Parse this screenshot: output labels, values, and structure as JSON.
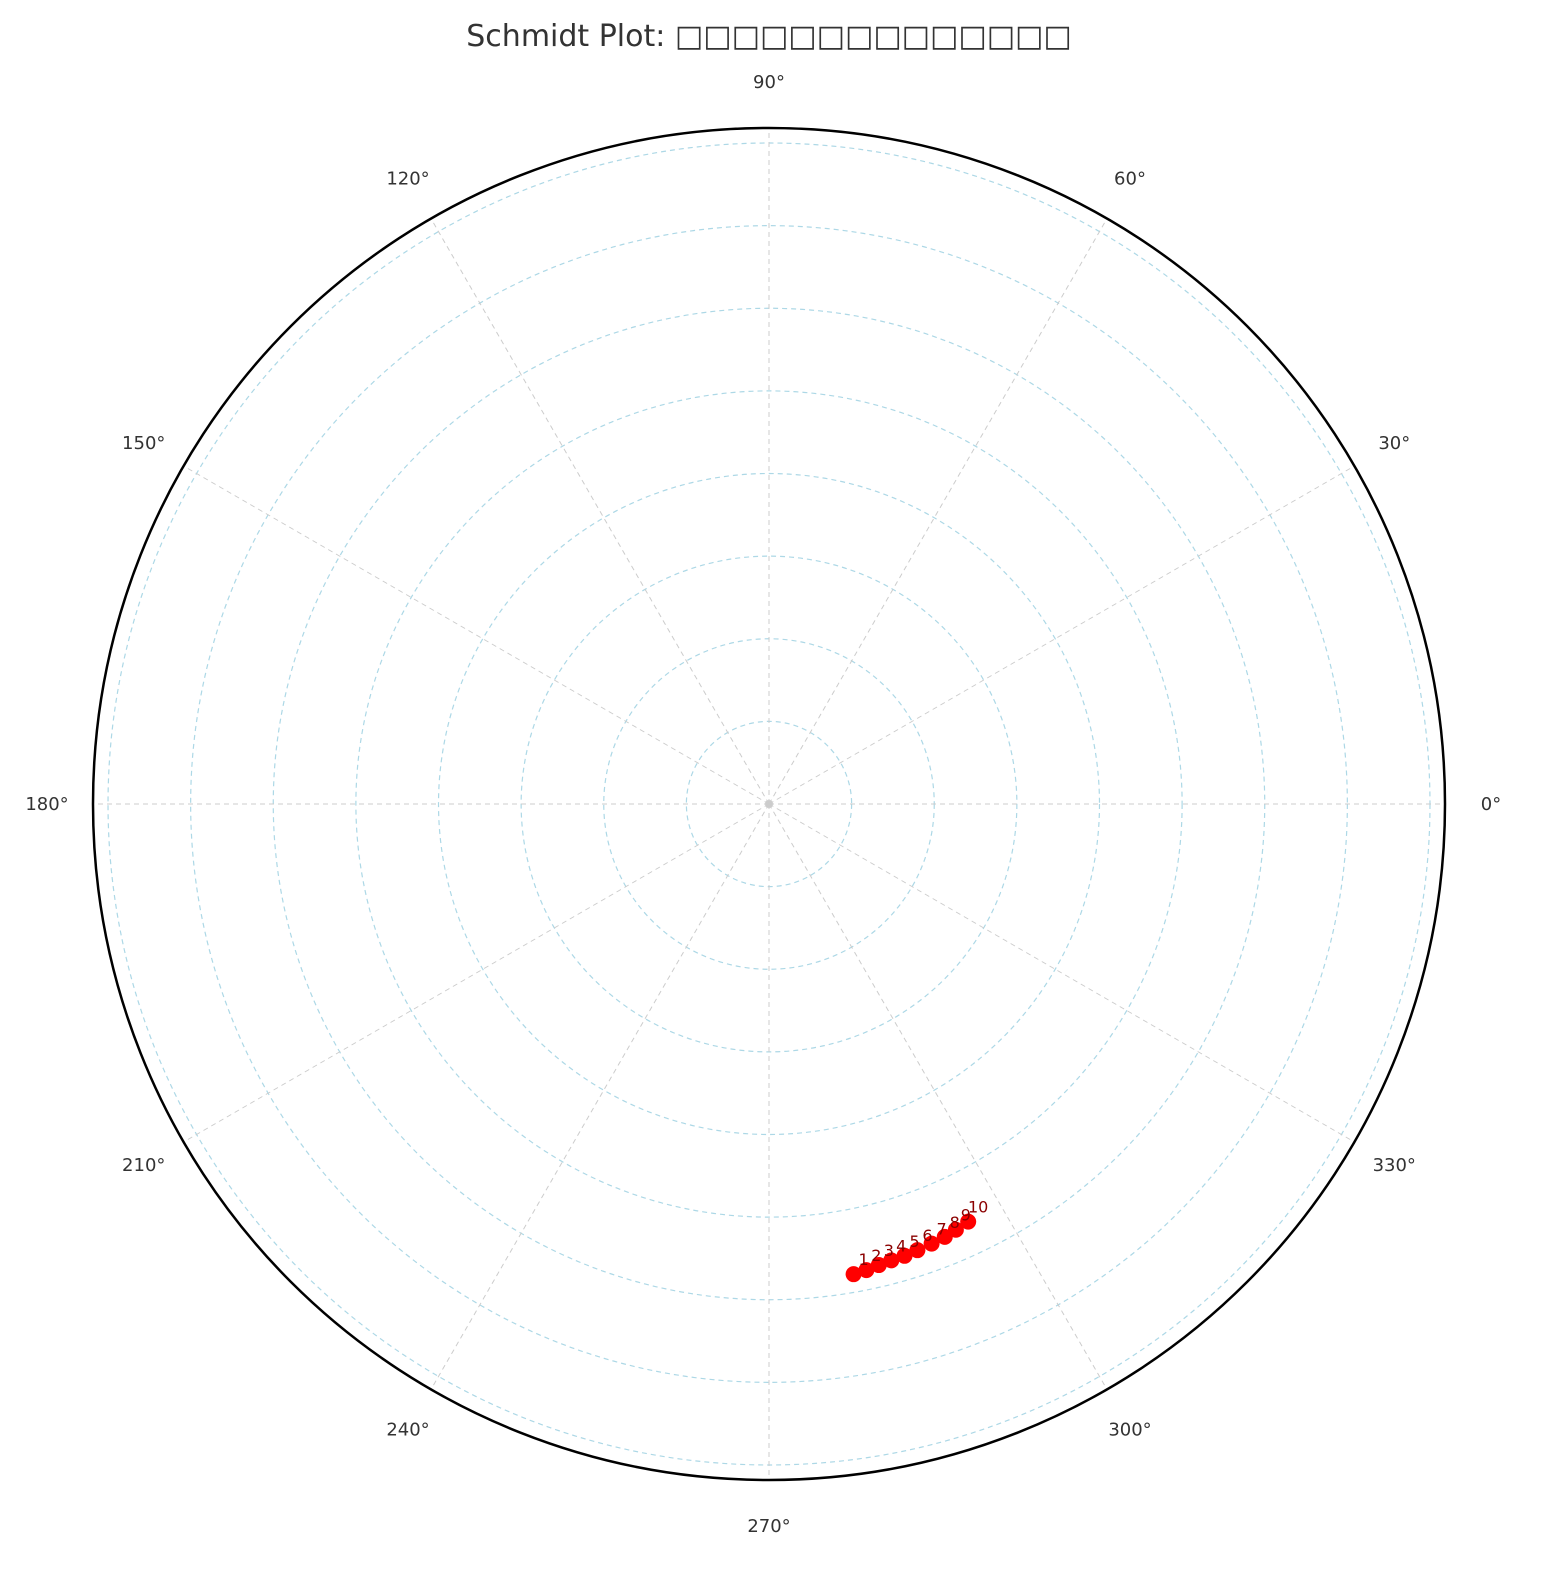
{
  "chart_data": {
    "type": "scatter",
    "projection": "polar",
    "title": "Schmidt Plot: □□□□□□□□□□□□□□",
    "angle_ticks": [
      {
        "deg": 0,
        "label": "0°"
      },
      {
        "deg": 30,
        "label": "30°"
      },
      {
        "deg": 60,
        "label": "60°"
      },
      {
        "deg": 90,
        "label": "90°"
      },
      {
        "deg": 120,
        "label": "120°"
      },
      {
        "deg": 150,
        "label": "150°"
      },
      {
        "deg": 180,
        "label": "180°"
      },
      {
        "deg": 210,
        "label": "210°"
      },
      {
        "deg": 240,
        "label": "240°"
      },
      {
        "deg": 270,
        "label": "270°"
      },
      {
        "deg": 300,
        "label": "300°"
      },
      {
        "deg": 330,
        "label": "330°"
      }
    ],
    "radial_range": [
      0,
      90
    ],
    "radial_gridlines": [
      11,
      22,
      33,
      44,
      55,
      66,
      77,
      88
    ],
    "grid": true,
    "points": [
      {
        "label": "1",
        "theta": 280.2,
        "r": 63.6
      },
      {
        "label": "2",
        "theta": 281.8,
        "r": 63.4
      },
      {
        "label": "3",
        "theta": 283.4,
        "r": 63.1
      },
      {
        "label": "4",
        "theta": 285.0,
        "r": 62.9
      },
      {
        "label": "5",
        "theta": 286.7,
        "r": 62.8
      },
      {
        "label": "6",
        "theta": 288.4,
        "r": 62.6
      },
      {
        "label": "7",
        "theta": 290.3,
        "r": 62.4
      },
      {
        "label": "8",
        "theta": 292.1,
        "r": 62.2
      },
      {
        "label": "9",
        "theta": 293.7,
        "r": 61.9
      },
      {
        "label": "10",
        "theta": 295.5,
        "r": 61.6
      }
    ],
    "colors": {
      "marker": "#ff0000",
      "point_label": "#8b0000",
      "radial_grid": "#add8e6",
      "angular_grid": "#cccccc",
      "frame": "#000000"
    }
  }
}
